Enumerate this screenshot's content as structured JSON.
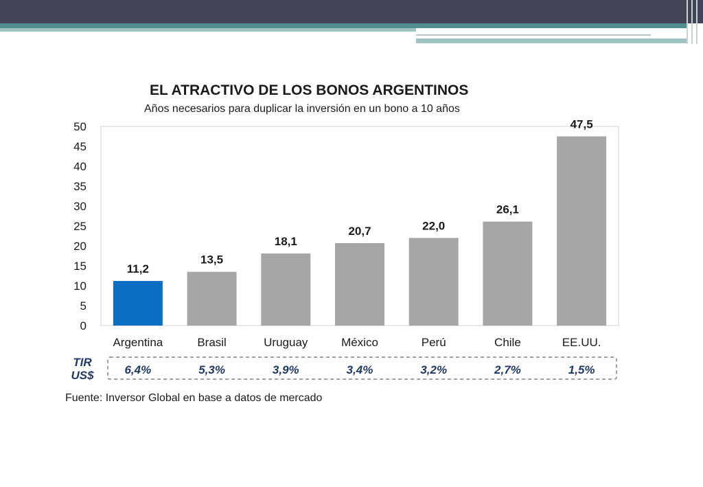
{
  "header": {
    "colors": {
      "bar": "#414455",
      "accent_teal": "#4f8d8f",
      "accent_light": "#9fc2c3"
    }
  },
  "chart_data": {
    "type": "bar",
    "title": "EL ATRACTIVO DE LOS BONOS ARGENTINOS",
    "subtitle": "Años necesarios para duplicar la inversión en un bono a 10 años",
    "categories": [
      "Argentina",
      "Brasil",
      "Uruguay",
      "México",
      "Perú",
      "Chile",
      "EE.UU."
    ],
    "values": [
      11.2,
      13.5,
      18.1,
      20.7,
      22.0,
      26.1,
      47.5
    ],
    "value_labels": [
      "11,2",
      "13,5",
      "18,1",
      "20,7",
      "22,0",
      "26,1",
      "47,5"
    ],
    "ylim": [
      0,
      50
    ],
    "yticks": [
      "0",
      "5",
      "10",
      "15",
      "20",
      "25",
      "30",
      "35",
      "40",
      "45",
      "50"
    ],
    "ytick_values": [
      0,
      5,
      10,
      15,
      20,
      25,
      30,
      35,
      40,
      45,
      50
    ],
    "grid": false,
    "colors": {
      "highlight": "#0a6fc2",
      "default": "#a6a6a6"
    },
    "highlight_index": 0,
    "tir": {
      "label": "TIR US$",
      "values": [
        "6,4%",
        "5,3%",
        "3,9%",
        "3,4%",
        "3,2%",
        "2,7%",
        "1,5%"
      ]
    },
    "source": "Fuente: Inversor Global en base a datos de mercado"
  }
}
